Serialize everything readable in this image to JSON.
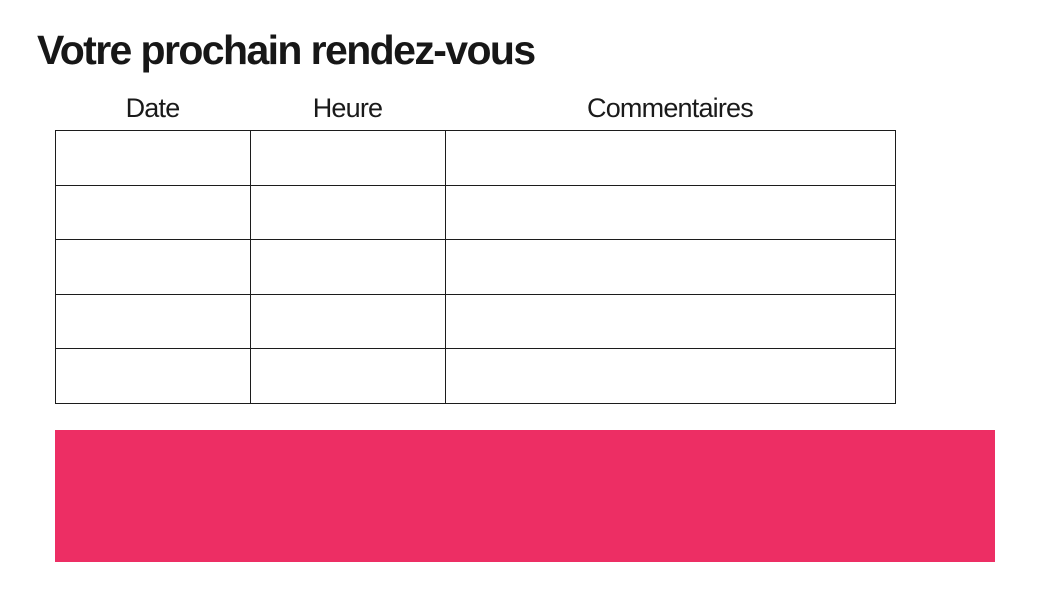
{
  "page": {
    "title": "Votre prochain rendez-vous"
  },
  "table": {
    "columns": [
      {
        "label": "Date"
      },
      {
        "label": "Heure"
      },
      {
        "label": "Commentaires"
      }
    ],
    "rows": [
      [
        "",
        "",
        ""
      ],
      [
        "",
        "",
        ""
      ],
      [
        "",
        "",
        ""
      ],
      [
        "",
        "",
        ""
      ],
      [
        "",
        "",
        ""
      ]
    ]
  },
  "colors": {
    "accent_pink": "#ED2E64",
    "table_border": "#1C1C1C",
    "text": "#1A1A1A"
  }
}
